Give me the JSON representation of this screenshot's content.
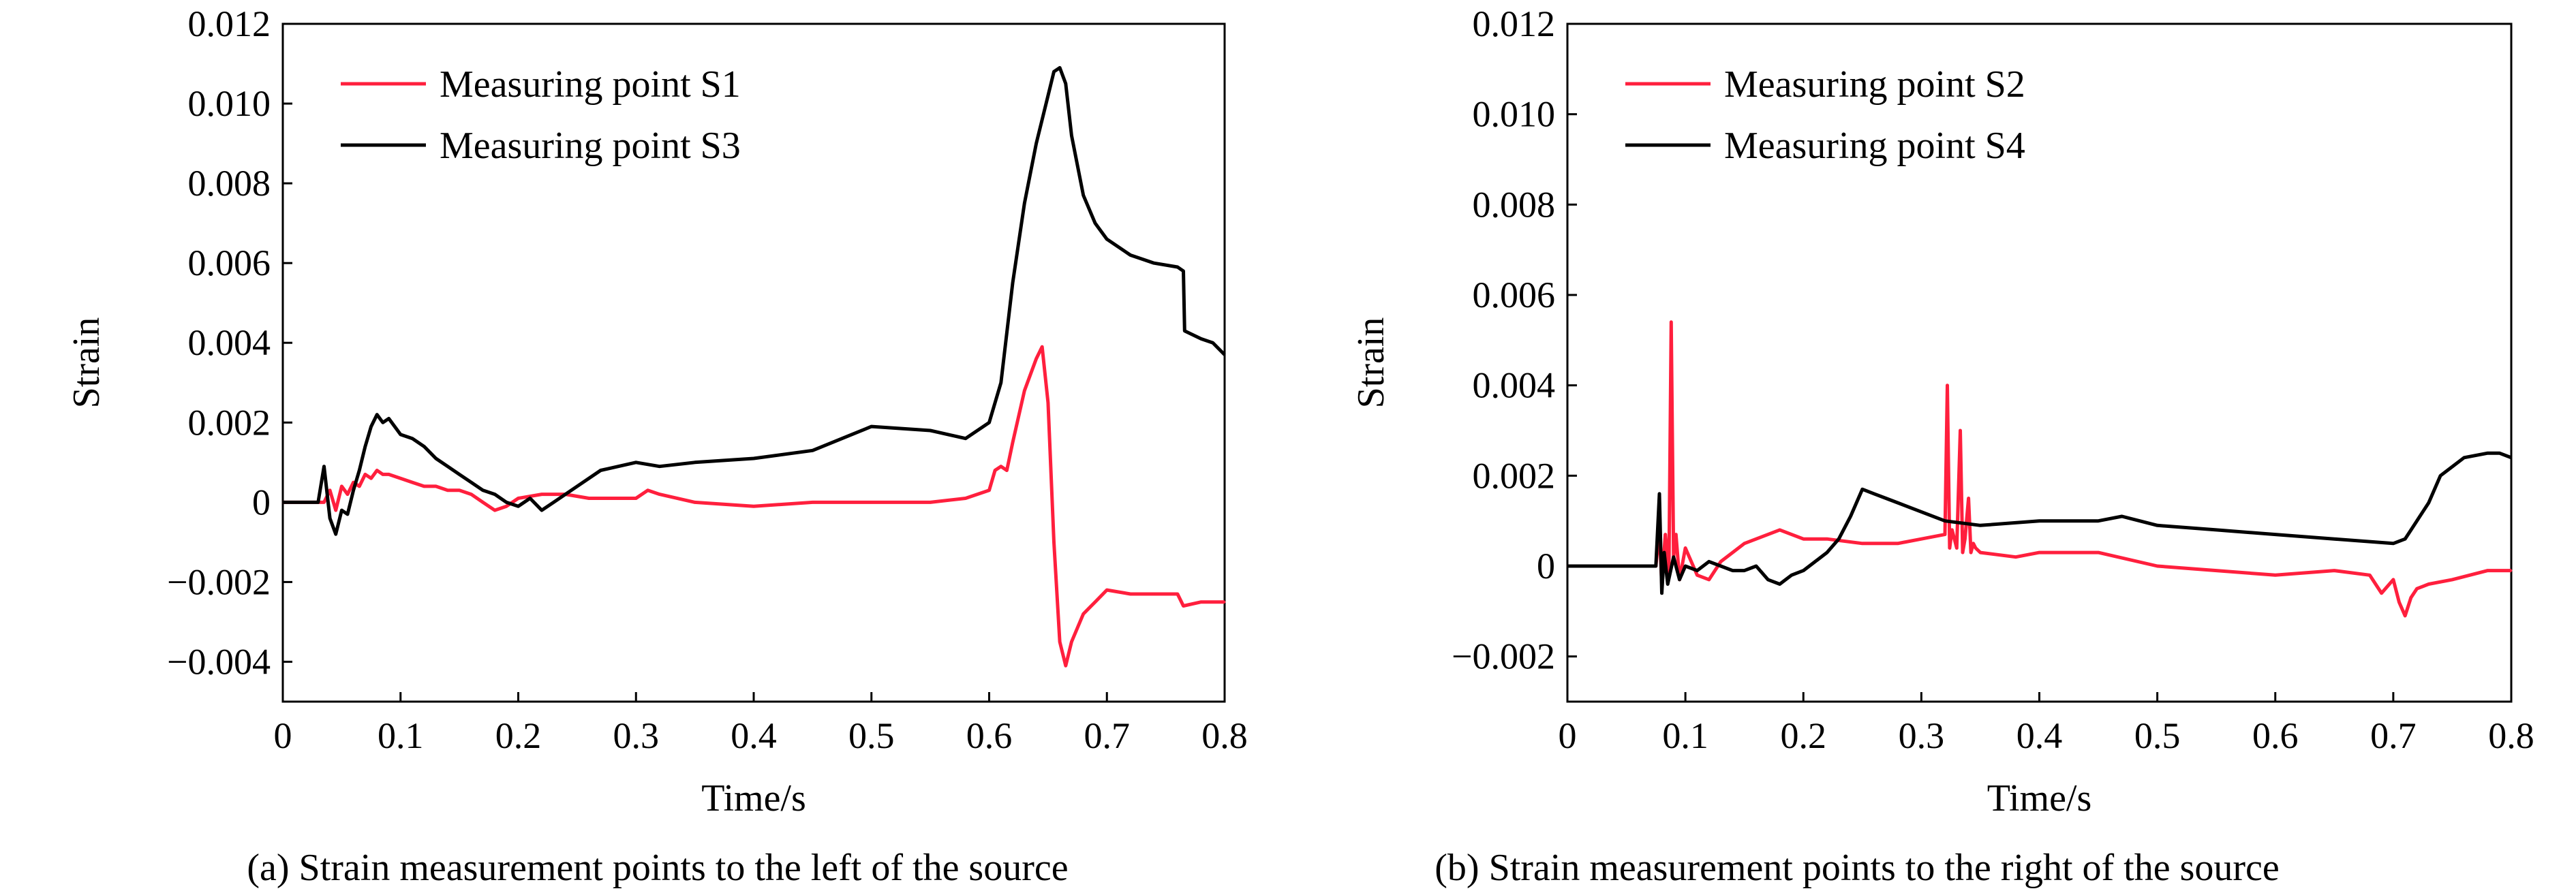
{
  "chart_data": [
    {
      "type": "line",
      "caption": "(a) Strain measurement points to the left of the source",
      "xlabel": "Time/s",
      "ylabel": "Strain",
      "xlim": [
        0,
        0.8
      ],
      "ylim": [
        -0.005,
        0.012
      ],
      "x_ticks": [
        0,
        0.1,
        0.2,
        0.3,
        0.4,
        0.5,
        0.6,
        0.7,
        0.8
      ],
      "x_tick_labels": [
        "0",
        "0.1",
        "0.2",
        "0.3",
        "0.4",
        "0.5",
        "0.6",
        "0.7",
        "0.8"
      ],
      "y_ticks": [
        -0.004,
        -0.002,
        0,
        0.002,
        0.004,
        0.006,
        0.008,
        0.01,
        0.012
      ],
      "y_tick_labels": [
        "−0.004",
        "−0.002",
        "0",
        "0.002",
        "0.004",
        "0.006",
        "0.008",
        "0.010",
        "0.012"
      ],
      "grid": false,
      "legend_position": "top-left",
      "series": [
        {
          "name": "Measuring point S1",
          "color": "#ff1f3d",
          "x": [
            0,
            0.035,
            0.04,
            0.045,
            0.05,
            0.055,
            0.06,
            0.065,
            0.07,
            0.075,
            0.08,
            0.085,
            0.09,
            0.1,
            0.11,
            0.12,
            0.13,
            0.14,
            0.15,
            0.16,
            0.17,
            0.18,
            0.19,
            0.2,
            0.22,
            0.24,
            0.26,
            0.28,
            0.3,
            0.31,
            0.32,
            0.35,
            0.4,
            0.45,
            0.5,
            0.55,
            0.58,
            0.6,
            0.605,
            0.61,
            0.615,
            0.62,
            0.63,
            0.64,
            0.645,
            0.65,
            0.655,
            0.66,
            0.665,
            0.67,
            0.68,
            0.69,
            0.7,
            0.72,
            0.74,
            0.76,
            0.765,
            0.78,
            0.8
          ],
          "y": [
            0,
            0,
            0.0003,
            -0.0002,
            0.0004,
            0.0002,
            0.0005,
            0.0004,
            0.0007,
            0.0006,
            0.0008,
            0.0007,
            0.0007,
            0.0006,
            0.0005,
            0.0004,
            0.0004,
            0.0003,
            0.0003,
            0.0002,
            0,
            -0.0002,
            -0.0001,
            0.0001,
            0.0002,
            0.0002,
            0.0001,
            0.0001,
            0.0001,
            0.0003,
            0.0002,
            0,
            -0.0001,
            0,
            0,
            0,
            0.0001,
            0.0003,
            0.0008,
            0.0009,
            0.0008,
            0.0015,
            0.0028,
            0.0036,
            0.0039,
            0.0025,
            -0.001,
            -0.0035,
            -0.0041,
            -0.0035,
            -0.0028,
            -0.0025,
            -0.0022,
            -0.0023,
            -0.0023,
            -0.0023,
            -0.0026,
            -0.0025,
            -0.0025
          ]
        },
        {
          "name": "Measuring point S3",
          "color": "#000000",
          "x": [
            0,
            0.03,
            0.035,
            0.04,
            0.045,
            0.05,
            0.055,
            0.06,
            0.065,
            0.07,
            0.075,
            0.08,
            0.085,
            0.09,
            0.1,
            0.11,
            0.12,
            0.13,
            0.14,
            0.15,
            0.16,
            0.17,
            0.18,
            0.19,
            0.2,
            0.21,
            0.22,
            0.23,
            0.25,
            0.27,
            0.3,
            0.32,
            0.35,
            0.4,
            0.45,
            0.5,
            0.55,
            0.58,
            0.6,
            0.61,
            0.62,
            0.63,
            0.64,
            0.65,
            0.655,
            0.66,
            0.665,
            0.67,
            0.68,
            0.69,
            0.7,
            0.72,
            0.74,
            0.76,
            0.765,
            0.766,
            0.78,
            0.79,
            0.8
          ],
          "y": [
            0,
            0,
            0.0009,
            -0.0004,
            -0.0008,
            -0.0002,
            -0.0003,
            0.0003,
            0.0008,
            0.0014,
            0.0019,
            0.0022,
            0.002,
            0.0021,
            0.0017,
            0.0016,
            0.0014,
            0.0011,
            0.0009,
            0.0007,
            0.0005,
            0.0003,
            0.0002,
            0,
            -0.0001,
            0.0001,
            -0.0002,
            0,
            0.0004,
            0.0008,
            0.001,
            0.0009,
            0.001,
            0.0011,
            0.0013,
            0.0019,
            0.0018,
            0.0016,
            0.002,
            0.003,
            0.0055,
            0.0075,
            0.009,
            0.0102,
            0.0108,
            0.0109,
            0.0105,
            0.0092,
            0.0077,
            0.007,
            0.0066,
            0.0062,
            0.006,
            0.0059,
            0.0058,
            0.0043,
            0.0041,
            0.004,
            0.0037
          ]
        }
      ]
    },
    {
      "type": "line",
      "caption": "(b) Strain measurement points to the right of the source",
      "xlabel": "Time/s",
      "ylabel": "Strain",
      "xlim": [
        0,
        0.8
      ],
      "ylim": [
        -0.003,
        0.012
      ],
      "x_ticks": [
        0,
        0.1,
        0.2,
        0.3,
        0.4,
        0.5,
        0.6,
        0.7,
        0.8
      ],
      "x_tick_labels": [
        "0",
        "0.1",
        "0.2",
        "0.3",
        "0.4",
        "0.5",
        "0.6",
        "0.7",
        "0.8"
      ],
      "y_ticks": [
        -0.002,
        0,
        0.002,
        0.004,
        0.006,
        0.008,
        0.01,
        0.012
      ],
      "y_tick_labels": [
        "−0.002",
        "0",
        "0.002",
        "0.004",
        "0.006",
        "0.008",
        "0.010",
        "0.012"
      ],
      "grid": false,
      "legend_position": "top-left",
      "series": [
        {
          "name": "Measuring point S2",
          "color": "#ff1f3d",
          "x": [
            0,
            0.075,
            0.078,
            0.08,
            0.083,
            0.086,
            0.088,
            0.09,
            0.092,
            0.095,
            0.1,
            0.11,
            0.12,
            0.13,
            0.14,
            0.15,
            0.16,
            0.17,
            0.18,
            0.19,
            0.2,
            0.22,
            0.25,
            0.28,
            0.3,
            0.32,
            0.322,
            0.324,
            0.326,
            0.33,
            0.333,
            0.335,
            0.337,
            0.34,
            0.342,
            0.344,
            0.346,
            0.35,
            0.38,
            0.4,
            0.45,
            0.5,
            0.55,
            0.6,
            0.65,
            0.68,
            0.69,
            0.7,
            0.705,
            0.71,
            0.715,
            0.72,
            0.73,
            0.75,
            0.78,
            0.8
          ],
          "y": [
            0,
            0,
            0.0008,
            -0.0004,
            0.0007,
            -0.0002,
            0.0054,
            0.0002,
            0.0007,
            -0.0003,
            0.0004,
            -0.0002,
            -0.0003,
            0.0001,
            0.0003,
            0.0005,
            0.0006,
            0.0007,
            0.0008,
            0.0007,
            0.0006,
            0.0006,
            0.0005,
            0.0005,
            0.0006,
            0.0007,
            0.004,
            0.0004,
            0.0008,
            0.0004,
            0.003,
            0.0003,
            0.0006,
            0.0015,
            0.0003,
            0.0005,
            0.0004,
            0.0003,
            0.0002,
            0.0003,
            0.0003,
            0,
            -0.0001,
            -0.0002,
            -0.0001,
            -0.0002,
            -0.0006,
            -0.0003,
            -0.0008,
            -0.0011,
            -0.0007,
            -0.0005,
            -0.0004,
            -0.0003,
            -0.0001,
            -0.0001
          ]
        },
        {
          "name": "Measuring point S4",
          "color": "#000000",
          "x": [
            0,
            0.075,
            0.078,
            0.08,
            0.082,
            0.085,
            0.09,
            0.095,
            0.1,
            0.11,
            0.12,
            0.13,
            0.14,
            0.15,
            0.16,
            0.17,
            0.18,
            0.19,
            0.2,
            0.21,
            0.22,
            0.23,
            0.24,
            0.25,
            0.26,
            0.27,
            0.28,
            0.3,
            0.32,
            0.35,
            0.4,
            0.45,
            0.47,
            0.5,
            0.55,
            0.6,
            0.65,
            0.7,
            0.71,
            0.72,
            0.73,
            0.74,
            0.75,
            0.76,
            0.78,
            0.79,
            0.8
          ],
          "y": [
            0,
            0,
            0.0016,
            -0.0006,
            0.0003,
            -0.0004,
            0.0002,
            -0.0003,
            0,
            -0.0001,
            0.0001,
            0,
            -0.0001,
            -0.0001,
            0,
            -0.0003,
            -0.0004,
            -0.0002,
            -0.0001,
            0.0001,
            0.0003,
            0.0006,
            0.0011,
            0.0017,
            0.0016,
            0.0015,
            0.0014,
            0.0012,
            0.001,
            0.0009,
            0.001,
            0.001,
            0.0011,
            0.0009,
            0.0008,
            0.0007,
            0.0006,
            0.0005,
            0.0006,
            0.001,
            0.0014,
            0.002,
            0.0022,
            0.0024,
            0.0025,
            0.0025,
            0.0024
          ]
        }
      ]
    }
  ]
}
